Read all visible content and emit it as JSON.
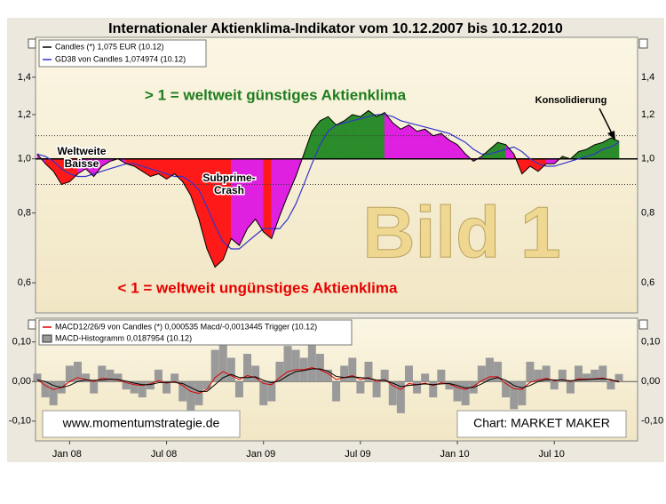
{
  "chart_data": [
    {
      "type": "area",
      "title": "Internationaler Aktienklima-Indikator vom 10.12.2007 bis 10.12.2010",
      "log_scale": true,
      "ylim": [
        0.53,
        1.65
      ],
      "yticks": [
        {
          "value": 0.6,
          "label": "0,6"
        },
        {
          "value": 0.8,
          "label": "0,8"
        },
        {
          "value": 1,
          "label": "1,0"
        },
        {
          "value": 1.2,
          "label": "1,2"
        },
        {
          "value": 1.4,
          "label": "1,4"
        }
      ],
      "baseline": 1,
      "bands": [
        0.9,
        1.1
      ],
      "fill_colors": {
        "above_up": "#2a8c2a",
        "above_down": "#e020e0",
        "below_down": "#ff1a1a",
        "below_up": "#e020e0"
      },
      "series": [
        {
          "name": "Candles (*) 1,075 EUR (10.12)",
          "color": "#000000",
          "values": [
            1.02,
            0.98,
            0.95,
            0.9,
            0.91,
            0.94,
            0.96,
            0.93,
            0.97,
            0.99,
            1.0,
            0.98,
            0.97,
            0.95,
            0.93,
            0.94,
            0.92,
            0.94,
            0.91,
            0.86,
            0.78,
            0.69,
            0.64,
            0.66,
            0.72,
            0.7,
            0.75,
            0.78,
            0.74,
            0.72,
            0.79,
            0.86,
            0.93,
            1.02,
            1.12,
            1.17,
            1.19,
            1.15,
            1.17,
            1.2,
            1.19,
            1.22,
            1.19,
            1.21,
            1.16,
            1.13,
            1.15,
            1.12,
            1.13,
            1.1,
            1.11,
            1.08,
            1.06,
            1.02,
            0.99,
            1.01,
            1.04,
            1.07,
            1.06,
            1.02,
            0.94,
            0.97,
            0.95,
            0.98,
            0.98,
            1.01,
            1.0,
            1.03,
            1.04,
            1.06,
            1.07,
            1.09,
            1.075
          ]
        },
        {
          "name": "GD38 von Candles 1,074974 (10.12)",
          "color": "#3333cc",
          "values": [
            1.02,
            1.01,
            0.99,
            0.96,
            0.94,
            0.93,
            0.93,
            0.94,
            0.95,
            0.96,
            0.97,
            0.98,
            0.98,
            0.97,
            0.96,
            0.95,
            0.94,
            0.93,
            0.93,
            0.91,
            0.88,
            0.82,
            0.76,
            0.71,
            0.69,
            0.69,
            0.71,
            0.73,
            0.75,
            0.75,
            0.75,
            0.78,
            0.83,
            0.9,
            0.98,
            1.06,
            1.12,
            1.15,
            1.16,
            1.17,
            1.18,
            1.19,
            1.2,
            1.2,
            1.19,
            1.17,
            1.16,
            1.15,
            1.14,
            1.13,
            1.12,
            1.11,
            1.09,
            1.07,
            1.04,
            1.02,
            1.02,
            1.03,
            1.04,
            1.05,
            1.03,
            1.0,
            0.98,
            0.97,
            0.97,
            0.98,
            0.99,
            1.0,
            1.01,
            1.02,
            1.04,
            1.05,
            1.07
          ]
        }
      ],
      "annotations": [
        "> 1 = weltweit günstiges Aktienklima",
        "< 1 = weltweit ungünstiges Aktienklima",
        [
          "Weltweite",
          "Baisse"
        ],
        [
          "Subprime-",
          "Crash"
        ],
        "Konsolidierung",
        "Bild 1"
      ]
    },
    {
      "type": "combo",
      "ylim": [
        -0.15,
        0.16
      ],
      "yticks": [
        {
          "value": -0.1,
          "label": "-0,10"
        },
        {
          "value": 0,
          "label": "0,00"
        },
        {
          "value": 0.1,
          "label": "0,10"
        }
      ],
      "categories": [
        null,
        null,
        null,
        null,
        "Jan 08",
        null,
        null,
        null,
        null,
        null,
        null,
        null,
        null,
        null,
        null,
        null,
        "Jul 08",
        null,
        null,
        null,
        null,
        null,
        null,
        null,
        null,
        null,
        null,
        null,
        "Jan 09",
        null,
        null,
        null,
        null,
        null,
        null,
        null,
        null,
        null,
        null,
        null,
        "Jul 09",
        null,
        null,
        null,
        null,
        null,
        null,
        null,
        null,
        null,
        null,
        null,
        "Jan 10",
        null,
        null,
        null,
        null,
        null,
        null,
        null,
        null,
        null,
        null,
        null,
        "Jul 10",
        null,
        null,
        null,
        null,
        null,
        null,
        null,
        null
      ],
      "series": [
        {
          "name": "MACD-Histogramm 0,0187954 (10.12)",
          "kind": "bar",
          "color": "#9a9a9a",
          "values": [
            0.02,
            -0.04,
            -0.06,
            -0.03,
            0.04,
            0.05,
            0.02,
            -0.03,
            0.04,
            0.03,
            0.02,
            -0.02,
            -0.03,
            -0.04,
            -0.02,
            0.03,
            -0.03,
            0.02,
            -0.05,
            -0.08,
            -0.06,
            -0.02,
            0.08,
            0.12,
            0.06,
            -0.04,
            0.07,
            0.04,
            -0.06,
            -0.05,
            0.05,
            0.09,
            0.08,
            0.06,
            0.1,
            0.07,
            0.03,
            -0.05,
            0.04,
            0.06,
            -0.03,
            0.05,
            -0.04,
            0.03,
            -0.06,
            -0.08,
            0.04,
            -0.03,
            0.02,
            -0.04,
            0.03,
            -0.02,
            -0.05,
            -0.06,
            -0.03,
            0.04,
            0.06,
            0.05,
            -0.04,
            -0.07,
            -0.06,
            0.05,
            0.03,
            0.04,
            -0.02,
            0.03,
            -0.03,
            0.04,
            0.02,
            0.03,
            0.04,
            -0.02,
            0.019
          ]
        },
        {
          "name": "MACD12/26/9 von Candles (*) 0,000535 Macd/-0,0013445 Trigger (10.12)",
          "kind": "line",
          "color": "#dd0000",
          "values": [
            0.005,
            -0.01,
            -0.02,
            -0.015,
            0,
            0.01,
            0.005,
            0,
            0.008,
            0.006,
            0.004,
            -0.003,
            -0.008,
            -0.01,
            -0.006,
            0.002,
            -0.004,
            0,
            -0.01,
            -0.025,
            -0.03,
            -0.02,
            0.01,
            0.025,
            0.015,
            0.005,
            0.015,
            0.01,
            -0.005,
            -0.008,
            0.01,
            0.025,
            0.03,
            0.03,
            0.035,
            0.03,
            0.02,
            0.005,
            0.01,
            0.015,
            0.005,
            0.01,
            0,
            0.005,
            -0.01,
            -0.02,
            -0.005,
            -0.008,
            -0.004,
            -0.01,
            -0.003,
            -0.006,
            -0.015,
            -0.02,
            -0.012,
            0.002,
            0.012,
            0.012,
            -0.005,
            -0.018,
            -0.02,
            -0.002,
            0.004,
            0.008,
            0.002,
            0.005,
            0,
            0.007,
            0.006,
            0.007,
            0.009,
            0.003,
            0.0005
          ]
        },
        {
          "kind": "line",
          "color": "#000000",
          "values": [
            0.004,
            0,
            -0.01,
            -0.015,
            -0.01,
            0,
            0.004,
            0.003,
            0.004,
            0.006,
            0.005,
            0.001,
            -0.004,
            -0.008,
            -0.008,
            -0.003,
            -0.002,
            -0.002,
            -0.005,
            -0.015,
            -0.025,
            -0.025,
            -0.008,
            0.01,
            0.018,
            0.01,
            0.01,
            0.012,
            0.003,
            -0.003,
            0.002,
            0.015,
            0.025,
            0.028,
            0.032,
            0.032,
            0.026,
            0.013,
            0.01,
            0.012,
            0.01,
            0.008,
            0.004,
            0.003,
            -0.004,
            -0.013,
            -0.01,
            -0.008,
            -0.006,
            -0.008,
            -0.006,
            -0.005,
            -0.01,
            -0.016,
            -0.015,
            -0.006,
            0.005,
            0.01,
            0.003,
            -0.01,
            -0.016,
            -0.01,
            0,
            0.005,
            0.004,
            0.004,
            0.002,
            0.004,
            0.005,
            0.006,
            0.007,
            0.005,
            -0.0013
          ]
        }
      ],
      "annotations": [
        "www.momentumstrategie.de",
        "Chart: MARKET MAKER"
      ]
    }
  ]
}
